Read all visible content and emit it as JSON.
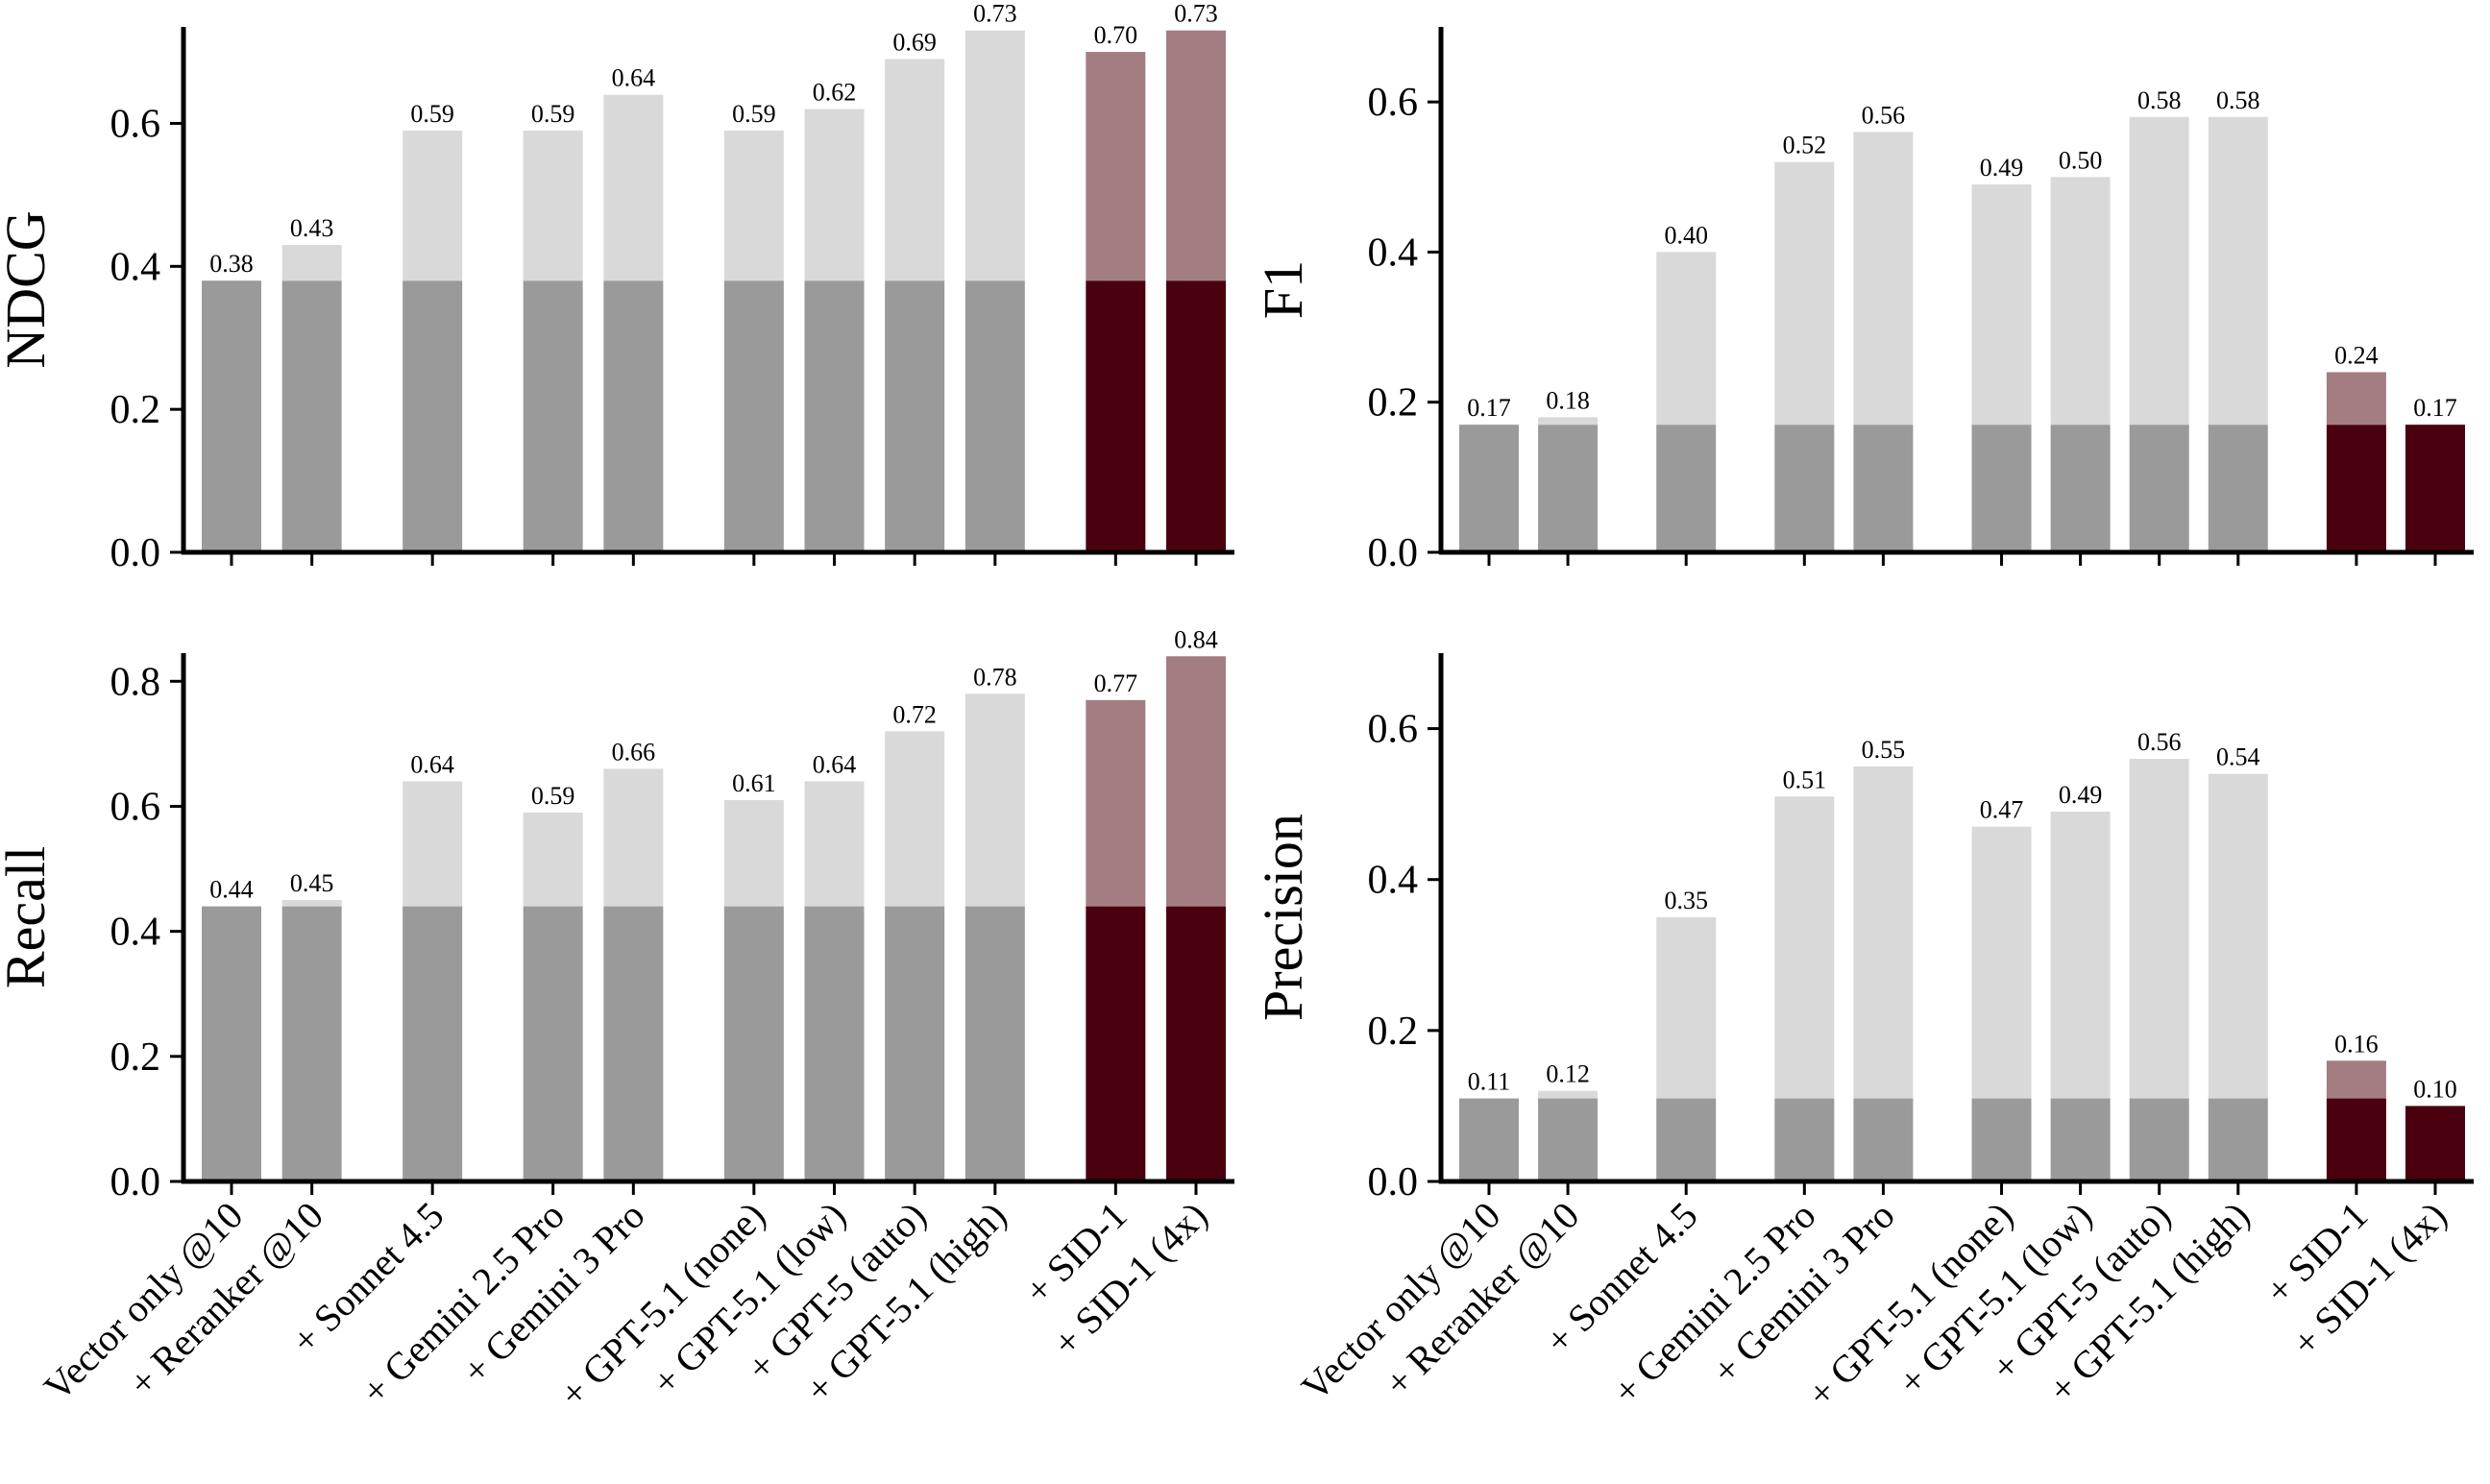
{
  "chart_data": {
    "type": "bar",
    "categories": [
      "Vector only @10",
      "+ Reranker @10",
      "+ Sonnet 4.5",
      "+ Gemini 2.5 Pro",
      "+ Gemini 3 Pro",
      "+ GPT-5.1 (none)",
      "+ GPT-5.1 (low)",
      "+ GPT-5 (auto)",
      "+ GPT-5.1 (high)",
      "+ SID-1",
      "+ SID-1 (4x)"
    ],
    "colors": {
      "base_gray": "#9a9a9a",
      "increment_gray": "#d9d9d9",
      "base_highlight": "#4a000e",
      "increment_highlight": "#a47d82"
    },
    "highlighted_categories": [
      "+ SID-1",
      "+ SID-1 (4x)"
    ],
    "grid": false,
    "panels": [
      {
        "ylabel": "NDCG",
        "baseline": 0.38,
        "values": [
          0.38,
          0.43,
          0.59,
          0.59,
          0.64,
          0.59,
          0.62,
          0.69,
          0.73,
          0.7,
          0.73
        ],
        "value_labels": [
          "0.38",
          "0.43",
          "0.59",
          "0.59",
          "0.64",
          "0.59",
          "0.62",
          "0.69",
          "0.73",
          "0.70",
          "0.73"
        ],
        "ylim": [
          0,
          0.735
        ],
        "yticks": [
          0.0,
          0.2,
          0.4,
          0.6
        ],
        "ytick_labels": [
          "0.0",
          "0.2",
          "0.4",
          "0.6"
        ]
      },
      {
        "ylabel": "F1",
        "baseline": 0.17,
        "values": [
          0.17,
          0.18,
          0.4,
          0.52,
          0.56,
          0.49,
          0.5,
          0.58,
          0.58,
          0.24,
          0.17
        ],
        "value_labels": [
          "0.17",
          "0.18",
          "0.40",
          "0.52",
          "0.56",
          "0.49",
          "0.50",
          "0.58",
          "0.58",
          "0.24",
          "0.17"
        ],
        "ylim": [
          0,
          0.7
        ],
        "yticks": [
          0.0,
          0.2,
          0.4,
          0.6
        ],
        "ytick_labels": [
          "0.0",
          "0.2",
          "0.4",
          "0.6"
        ]
      },
      {
        "ylabel": "Recall",
        "baseline": 0.44,
        "values": [
          0.44,
          0.45,
          0.64,
          0.59,
          0.66,
          0.61,
          0.64,
          0.72,
          0.78,
          0.77,
          0.84
        ],
        "value_labels": [
          "0.44",
          "0.45",
          "0.64",
          "0.59",
          "0.66",
          "0.61",
          "0.64",
          "0.72",
          "0.78",
          "0.77",
          "0.84"
        ],
        "ylim": [
          0,
          0.845
        ],
        "yticks": [
          0.0,
          0.2,
          0.4,
          0.6,
          0.8
        ],
        "ytick_labels": [
          "0.0",
          "0.2",
          "0.4",
          "0.6",
          "0.8"
        ]
      },
      {
        "ylabel": "Precision",
        "baseline": 0.11,
        "values": [
          0.11,
          0.12,
          0.35,
          0.51,
          0.55,
          0.47,
          0.49,
          0.56,
          0.54,
          0.16,
          0.1
        ],
        "value_labels": [
          "0.11",
          "0.12",
          "0.35",
          "0.51",
          "0.55",
          "0.47",
          "0.49",
          "0.56",
          "0.54",
          "0.16",
          "0.10"
        ],
        "ylim": [
          0,
          0.7
        ],
        "yticks": [
          0.0,
          0.2,
          0.4,
          0.6
        ],
        "ytick_labels": [
          "0.0",
          "0.2",
          "0.4",
          "0.6"
        ]
      }
    ]
  }
}
